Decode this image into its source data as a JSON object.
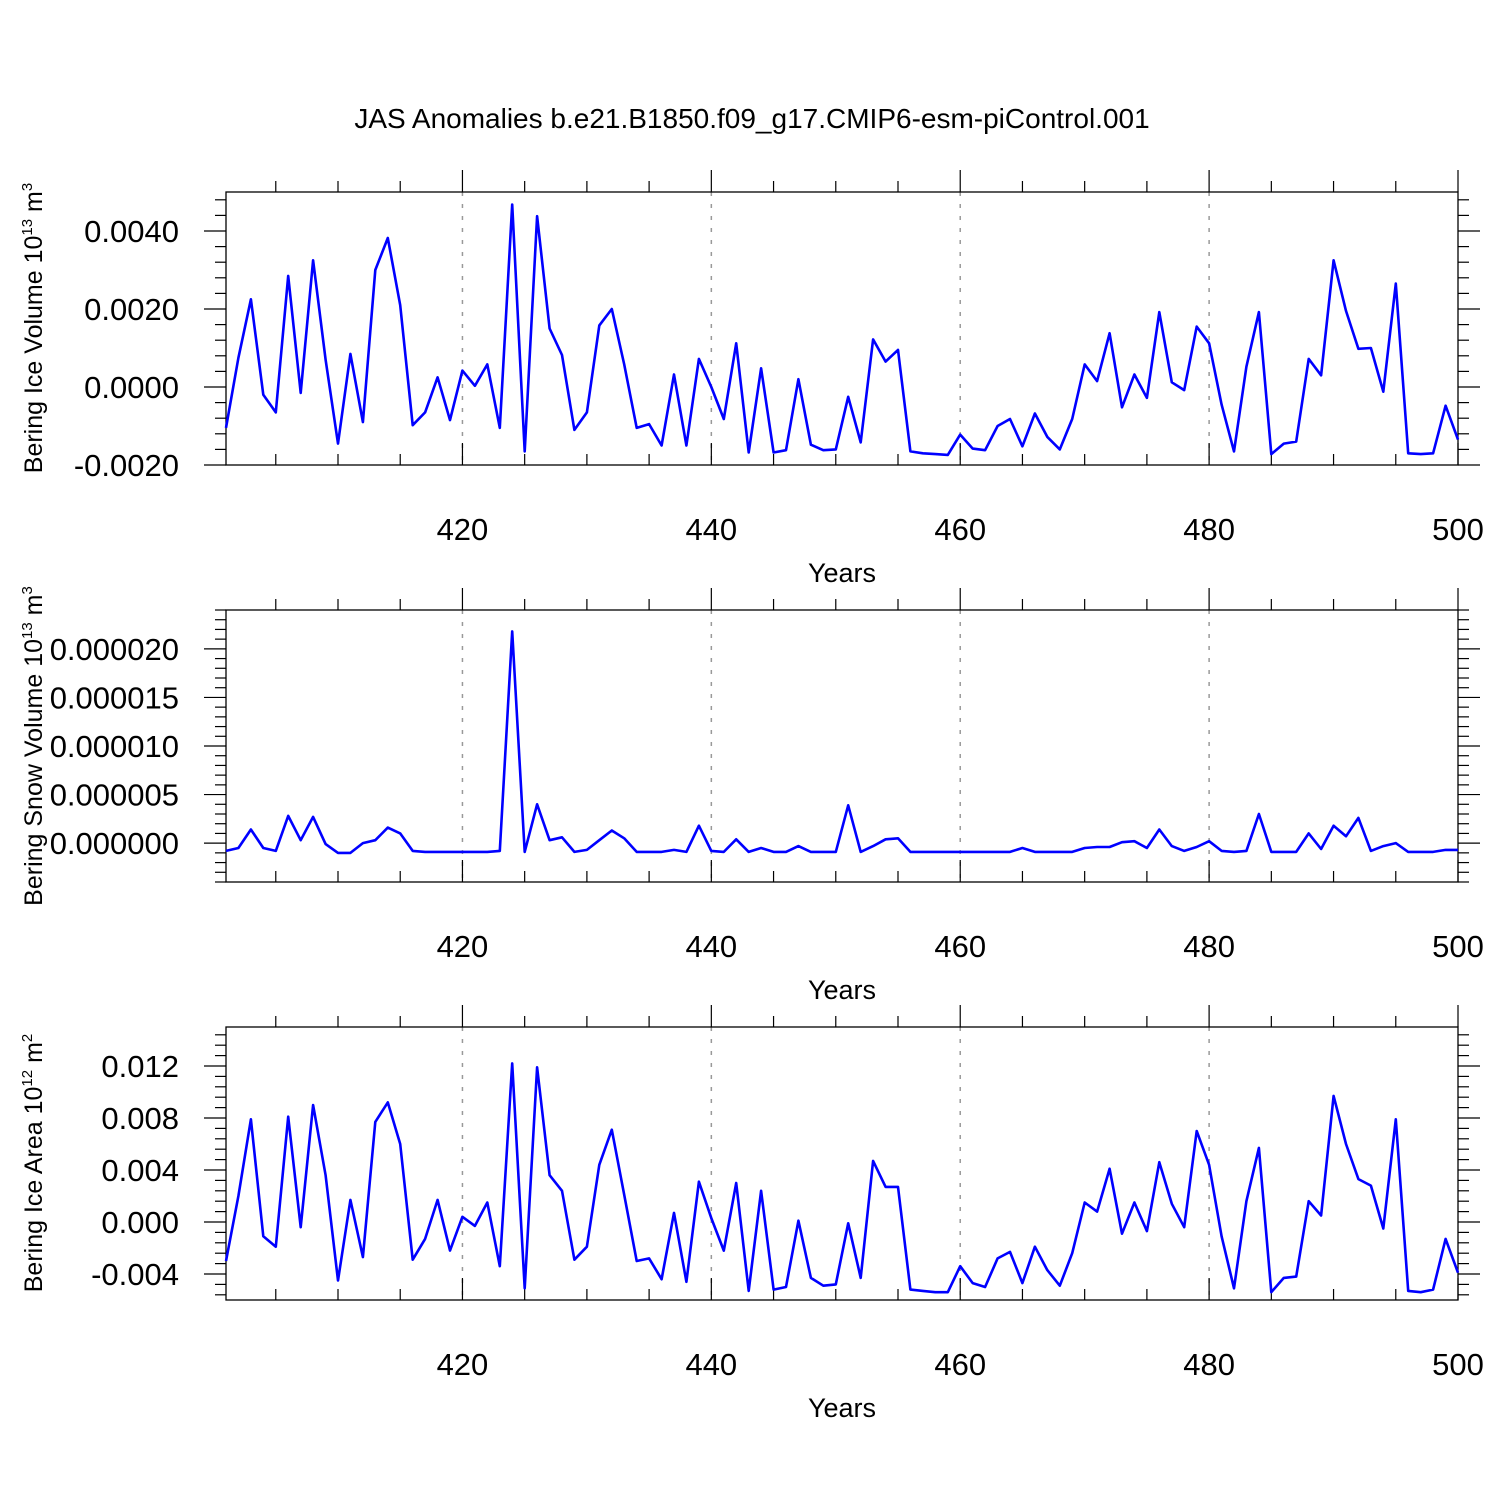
{
  "title": "JAS Anomalies b.e21.B1850.f09_g17.CMIP6-esm-piControl.001",
  "colors": {
    "line": "#0000ff",
    "grid": "#999999",
    "axis": "#000000"
  },
  "chart_data": [
    {
      "type": "line",
      "xlabel": "Years",
      "ylabel_main": "Bering Ice Volume 10",
      "ylabel_sup": "13",
      "ylabel_unit": " m",
      "ylabel_unit_sup": "3",
      "xlim": [
        401,
        500
      ],
      "ylim": [
        -0.002,
        0.005
      ],
      "xticks": [
        420,
        440,
        460,
        480,
        500
      ],
      "xtick_labels": [
        "420",
        "440",
        "460",
        "480",
        "500"
      ],
      "yticks": [
        -0.002,
        0.0,
        0.002,
        0.004
      ],
      "ytick_labels": [
        "-0.0020",
        "0.0000",
        "0.0020",
        "0.0040"
      ],
      "grid_x": [
        420,
        440,
        460,
        480
      ],
      "x": [
        401,
        402,
        403,
        404,
        405,
        406,
        407,
        408,
        409,
        410,
        411,
        412,
        413,
        414,
        415,
        416,
        417,
        418,
        419,
        420,
        421,
        422,
        423,
        424,
        425,
        426,
        427,
        428,
        429,
        430,
        431,
        432,
        433,
        434,
        435,
        436,
        437,
        438,
        439,
        440,
        441,
        442,
        443,
        444,
        445,
        446,
        447,
        448,
        449,
        450,
        451,
        452,
        453,
        454,
        455,
        456,
        457,
        458,
        459,
        460,
        461,
        462,
        463,
        464,
        465,
        466,
        467,
        468,
        469,
        470,
        471,
        472,
        473,
        474,
        475,
        476,
        477,
        478,
        479,
        480,
        481,
        482,
        483,
        484,
        485,
        486,
        487,
        488,
        489,
        490,
        491,
        492,
        493,
        494,
        495,
        496,
        497,
        498,
        499,
        500
      ],
      "series": [
        {
          "values": [
            -0.00105,
            0.00075,
            0.00225,
            -0.0002,
            -0.00065,
            0.00285,
            -0.00015,
            0.00325,
            0.0007,
            -0.00145,
            0.00085,
            -0.0009,
            0.003,
            0.00382,
            0.0021,
            -0.00098,
            -0.00065,
            0.00025,
            -0.00085,
            0.00042,
            3e-05,
            0.00058,
            -0.00105,
            0.00468,
            -0.00165,
            0.00438,
            0.0015,
            0.00082,
            -0.0011,
            -0.00065,
            0.00158,
            0.002,
            0.00058,
            -0.00105,
            -0.00095,
            -0.0015,
            0.00032,
            -0.0015,
            0.00072,
            0.0,
            -0.00082,
            0.00112,
            -0.00168,
            0.00048,
            -0.00168,
            -0.00162,
            0.0002,
            -0.00148,
            -0.00162,
            -0.0016,
            -0.00025,
            -0.00142,
            0.00122,
            0.00065,
            0.00095,
            -0.00165,
            -0.0017,
            -0.00172,
            -0.00174,
            -0.00122,
            -0.00158,
            -0.00162,
            -0.001,
            -0.00082,
            -0.00152,
            -0.00068,
            -0.00128,
            -0.0016,
            -0.00082,
            0.00058,
            0.00015,
            0.00138,
            -0.00052,
            0.00032,
            -0.00028,
            0.00192,
            0.00012,
            -8e-05,
            0.00155,
            0.00112,
            -0.00045,
            -0.00165,
            0.00052,
            0.00192,
            -0.00172,
            -0.00145,
            -0.0014,
            0.00072,
            0.0003,
            0.00325,
            0.00195,
            0.00098,
            0.001,
            -0.00012,
            0.00265,
            -0.0017,
            -0.00172,
            -0.0017,
            -0.00048,
            -0.00135
          ]
        }
      ]
    },
    {
      "type": "line",
      "xlabel": "Years",
      "ylabel_main": "Bering Snow Volume 10",
      "ylabel_sup": "13",
      "ylabel_unit": " m",
      "ylabel_unit_sup": "3",
      "xlim": [
        401,
        500
      ],
      "ylim": [
        -4e-06,
        2.4e-05
      ],
      "xticks": [
        420,
        440,
        460,
        480,
        500
      ],
      "xtick_labels": [
        "420",
        "440",
        "460",
        "480",
        "500"
      ],
      "yticks": [
        0.0,
        5e-06,
        1e-05,
        1.5e-05,
        2e-05
      ],
      "ytick_labels": [
        "0.000000",
        "0.000005",
        "0.000010",
        "0.000015",
        "0.000020"
      ],
      "grid_x": [
        420,
        440,
        460,
        480
      ],
      "x": [
        401,
        402,
        403,
        404,
        405,
        406,
        407,
        408,
        409,
        410,
        411,
        412,
        413,
        414,
        415,
        416,
        417,
        418,
        419,
        420,
        421,
        422,
        423,
        424,
        425,
        426,
        427,
        428,
        429,
        430,
        431,
        432,
        433,
        434,
        435,
        436,
        437,
        438,
        439,
        440,
        441,
        442,
        443,
        444,
        445,
        446,
        447,
        448,
        449,
        450,
        451,
        452,
        453,
        454,
        455,
        456,
        457,
        458,
        459,
        460,
        461,
        462,
        463,
        464,
        465,
        466,
        467,
        468,
        469,
        470,
        471,
        472,
        473,
        474,
        475,
        476,
        477,
        478,
        479,
        480,
        481,
        482,
        483,
        484,
        485,
        486,
        487,
        488,
        489,
        490,
        491,
        492,
        493,
        494,
        495,
        496,
        497,
        498,
        499,
        500
      ],
      "series": [
        {
          "values": [
            -8e-07,
            -5e-07,
            1.4e-06,
            -5e-07,
            -8e-07,
            2.8e-06,
            3e-07,
            2.7e-06,
            -1e-07,
            -1e-06,
            -1e-06,
            0.0,
            3e-07,
            1.6e-06,
            1e-06,
            -8e-07,
            -9e-07,
            -9e-07,
            -9e-07,
            -9e-07,
            -9e-07,
            -9e-07,
            -8e-07,
            2.18e-05,
            -9e-07,
            4e-06,
            3e-07,
            6e-07,
            -9e-07,
            -7e-07,
            3e-07,
            1.3e-06,
            5e-07,
            -9e-07,
            -9e-07,
            -9e-07,
            -7e-07,
            -9e-07,
            1.8e-06,
            -8e-07,
            -9e-07,
            4e-07,
            -9e-07,
            -5e-07,
            -9e-07,
            -9e-07,
            -3e-07,
            -9e-07,
            -9e-07,
            -9e-07,
            3.9e-06,
            -9e-07,
            -3e-07,
            4e-07,
            5e-07,
            -9e-07,
            -9e-07,
            -9e-07,
            -9e-07,
            -9e-07,
            -9e-07,
            -9e-07,
            -9e-07,
            -9e-07,
            -5e-07,
            -9e-07,
            -9e-07,
            -9e-07,
            -9e-07,
            -5e-07,
            -4e-07,
            -4e-07,
            1e-07,
            2e-07,
            -5e-07,
            1.4e-06,
            -3e-07,
            -8e-07,
            -4e-07,
            2e-07,
            -8e-07,
            -9e-07,
            -8e-07,
            3e-06,
            -9e-07,
            -9e-07,
            -9e-07,
            1e-06,
            -6e-07,
            1.8e-06,
            7e-07,
            2.6e-06,
            -8e-07,
            -3e-07,
            0.0,
            -9e-07,
            -9e-07,
            -9e-07,
            -7e-07,
            -7e-07
          ]
        }
      ]
    },
    {
      "type": "line",
      "xlabel": "Years",
      "ylabel_main": "Bering Ice Area 10",
      "ylabel_sup": "12",
      "ylabel_unit": " m",
      "ylabel_unit_sup": "2",
      "xlim": [
        401,
        500
      ],
      "ylim": [
        -0.006,
        0.015
      ],
      "xticks": [
        420,
        440,
        460,
        480,
        500
      ],
      "xtick_labels": [
        "420",
        "440",
        "460",
        "480",
        "500"
      ],
      "yticks": [
        -0.004,
        0.0,
        0.004,
        0.008,
        0.012
      ],
      "ytick_labels": [
        "-0.004",
        "0.000",
        "0.004",
        "0.008",
        "0.012"
      ],
      "grid_x": [
        420,
        440,
        460,
        480
      ],
      "x": [
        401,
        402,
        403,
        404,
        405,
        406,
        407,
        408,
        409,
        410,
        411,
        412,
        413,
        414,
        415,
        416,
        417,
        418,
        419,
        420,
        421,
        422,
        423,
        424,
        425,
        426,
        427,
        428,
        429,
        430,
        431,
        432,
        433,
        434,
        435,
        436,
        437,
        438,
        439,
        440,
        441,
        442,
        443,
        444,
        445,
        446,
        447,
        448,
        449,
        450,
        451,
        452,
        453,
        454,
        455,
        456,
        457,
        458,
        459,
        460,
        461,
        462,
        463,
        464,
        465,
        466,
        467,
        468,
        469,
        470,
        471,
        472,
        473,
        474,
        475,
        476,
        477,
        478,
        479,
        480,
        481,
        482,
        483,
        484,
        485,
        486,
        487,
        488,
        489,
        490,
        491,
        492,
        493,
        494,
        495,
        496,
        497,
        498,
        499,
        500
      ],
      "series": [
        {
          "values": [
            -0.003,
            0.002,
            0.0079,
            -0.0011,
            -0.0019,
            0.0081,
            -0.0004,
            0.009,
            0.0036,
            -0.0045,
            0.0017,
            -0.0027,
            0.0077,
            0.0092,
            0.006,
            -0.0029,
            -0.0013,
            0.0017,
            -0.0022,
            0.0004,
            -0.0003,
            0.0015,
            -0.0034,
            0.0122,
            -0.0051,
            0.0119,
            0.0036,
            0.0024,
            -0.0029,
            -0.0019,
            0.0044,
            0.0071,
            0.0021,
            -0.003,
            -0.0028,
            -0.0044,
            0.0007,
            -0.0046,
            0.0031,
            0.0003,
            -0.0022,
            0.003,
            -0.0053,
            0.0024,
            -0.0052,
            -0.005,
            0.0001,
            -0.0043,
            -0.0049,
            -0.0048,
            -0.0001,
            -0.0043,
            0.0047,
            0.0027,
            0.0027,
            -0.0052,
            -0.0053,
            -0.0054,
            -0.0054,
            -0.0034,
            -0.0047,
            -0.005,
            -0.0028,
            -0.0023,
            -0.0047,
            -0.0019,
            -0.0037,
            -0.0049,
            -0.0024,
            0.0015,
            0.0008,
            0.0041,
            -0.0009,
            0.0015,
            -0.0007,
            0.0046,
            0.0014,
            -0.0004,
            0.007,
            0.0044,
            -0.0011,
            -0.0051,
            0.0016,
            0.0057,
            -0.0054,
            -0.0043,
            -0.0042,
            0.0016,
            0.0005,
            0.0097,
            0.006,
            0.0033,
            0.0028,
            -0.0005,
            0.0079,
            -0.0053,
            -0.0054,
            -0.0052,
            -0.0013,
            -0.0039
          ]
        }
      ]
    }
  ]
}
